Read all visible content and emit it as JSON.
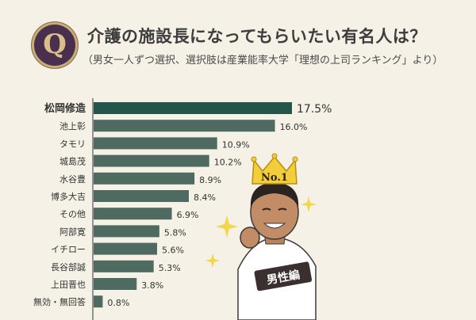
{
  "header": {
    "badge_letter": "Q",
    "title": "介護の施設長になってもらいたい有名人は？",
    "subtitle": "（男女一人ずつ選択、選択肢は産業能率大学「理想の上司ランキング」より）"
  },
  "illustration": {
    "crown_text": "No.1",
    "category_badge": "男性編"
  },
  "chart_data": {
    "type": "bar",
    "orientation": "horizontal",
    "categories": [
      "松岡修造",
      "池上彰",
      "タモリ",
      "城島茂",
      "水谷豊",
      "博多大吉",
      "その他",
      "阿部寛",
      "イチロー",
      "長谷部誠",
      "上田晋也",
      "無効・無回答"
    ],
    "values": [
      17.5,
      16.0,
      10.9,
      10.2,
      8.9,
      8.4,
      6.9,
      5.8,
      5.6,
      5.3,
      3.8,
      0.8
    ],
    "value_labels": [
      "17.5%",
      "16.0%",
      "10.9%",
      "10.2%",
      "8.9%",
      "8.4%",
      "6.9%",
      "5.8%",
      "5.6%",
      "5.3%",
      "3.8%",
      "0.8%"
    ],
    "highlight_index": 0,
    "colors": {
      "highlight": "#25554a",
      "bar": "#4f6a61"
    },
    "xlim": [
      0,
      17.5
    ],
    "grid": false
  }
}
